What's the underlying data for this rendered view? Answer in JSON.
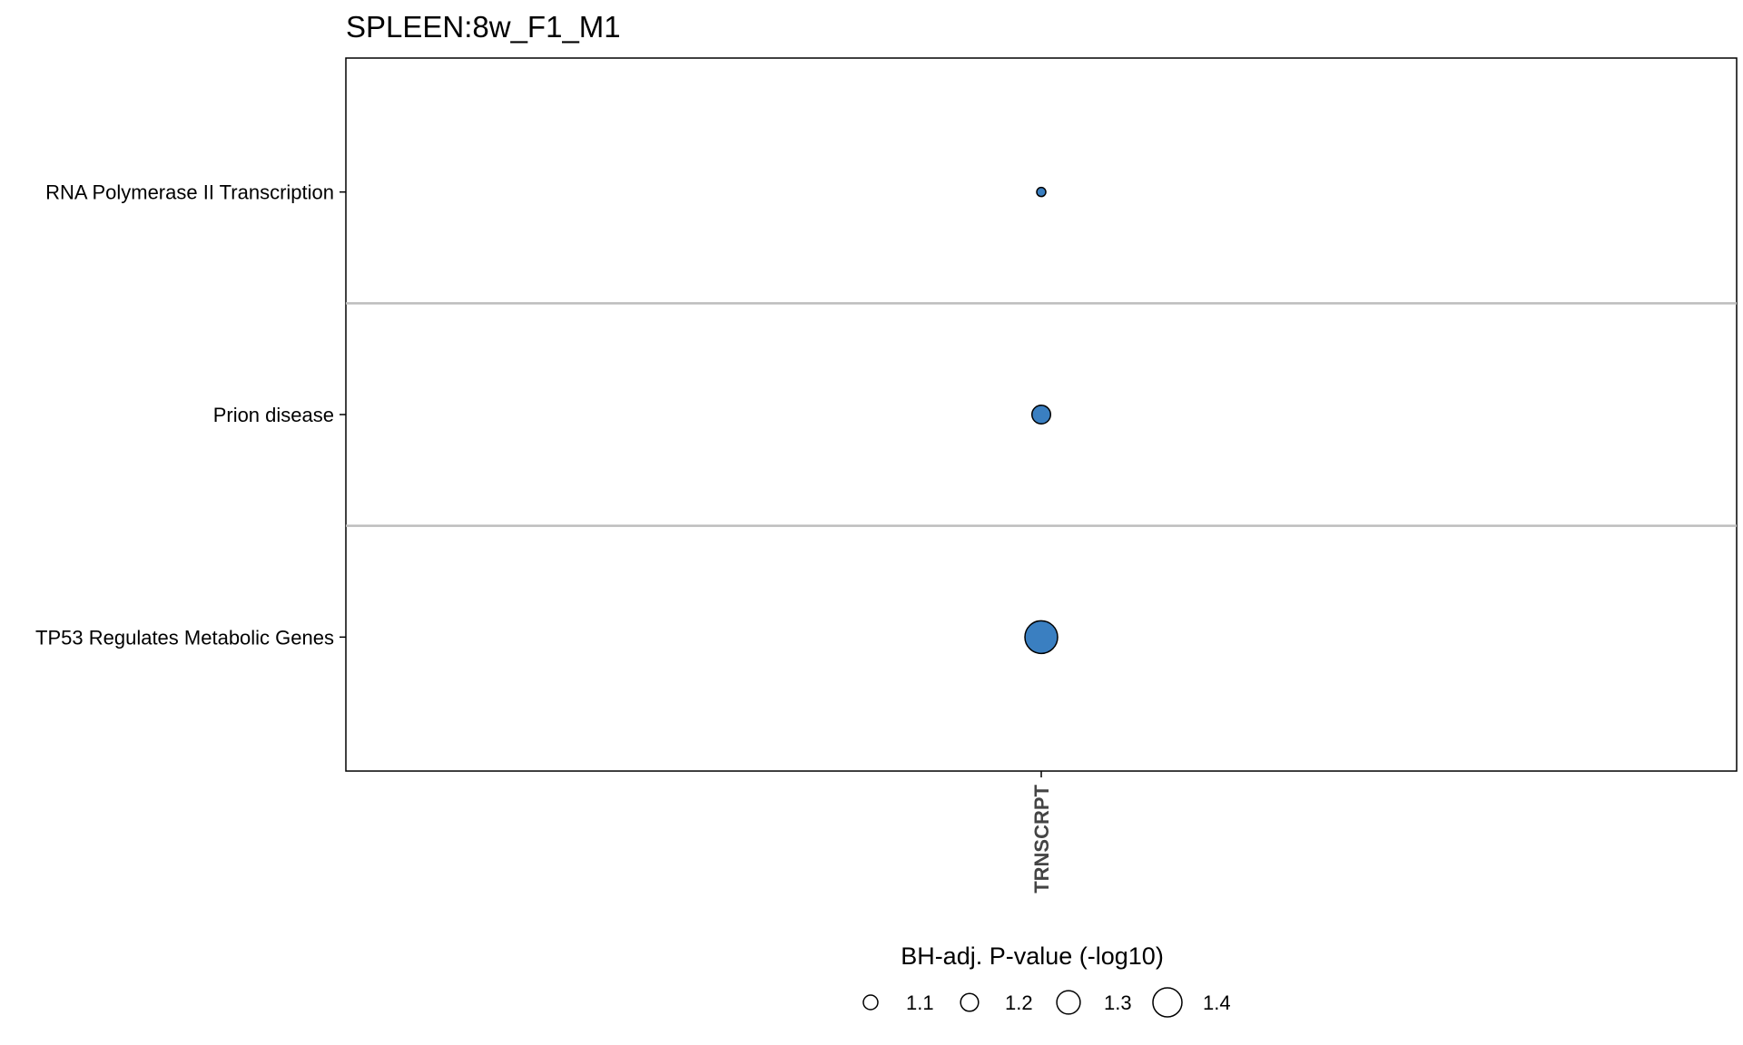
{
  "chart_data": {
    "type": "scatter",
    "title": "SPLEEN:8w_F1_M1",
    "x_categories": [
      "TRNSCRPT"
    ],
    "y_categories": [
      "RNA Polymerase II Transcription",
      "Prion disease",
      "TP53 Regulates Metabolic Genes"
    ],
    "points": [
      {
        "x": "TRNSCRPT",
        "y": "RNA Polymerase II Transcription",
        "size_value": 1.0
      },
      {
        "x": "TRNSCRPT",
        "y": "Prion disease",
        "size_value": 1.17
      },
      {
        "x": "TRNSCRPT",
        "y": "TP53 Regulates Metabolic Genes",
        "size_value": 1.42
      }
    ],
    "point_color": "#3a7fc1",
    "size_legend": {
      "title": "BH-adj. P-value (-log10)",
      "position": "bottom",
      "entries": [
        {
          "value": 1.1,
          "label": "1.1"
        },
        {
          "value": 1.2,
          "label": "1.2"
        },
        {
          "value": 1.3,
          "label": "1.3"
        },
        {
          "value": 1.4,
          "label": "1.4"
        }
      ]
    },
    "grid": {
      "horizontal_separators": true,
      "vertical": false
    }
  }
}
